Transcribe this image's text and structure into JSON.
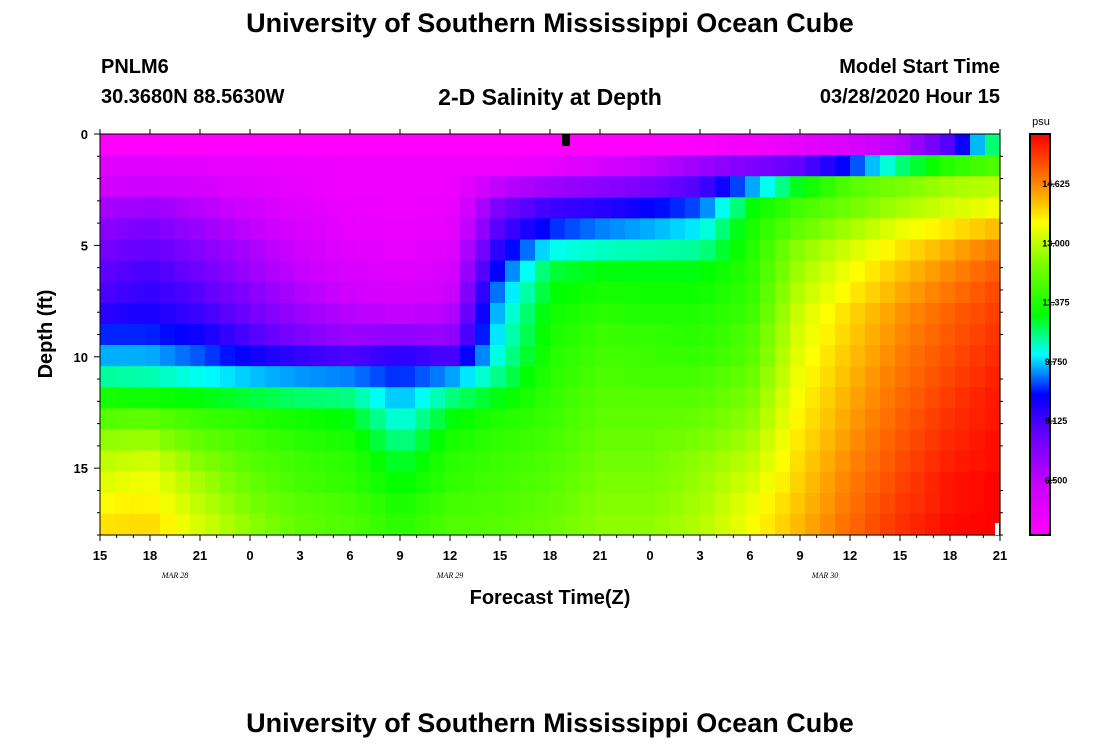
{
  "header": {
    "title": "University of Southern Mississippi Ocean Cube",
    "station": "PNLM6",
    "coordinates": "30.3680N 88.5630W",
    "subtitle": "2-D Salinity at Depth",
    "model_start_label": "Model Start Time",
    "model_start_value": "03/28/2020 Hour 15"
  },
  "footer": {
    "title": "University of Southern Mississippi Ocean Cube"
  },
  "chart_data": {
    "type": "heatmap",
    "title": "2-D Salinity at Depth",
    "xlabel": "Forecast Time(Z)",
    "ylabel": "Depth (ft)",
    "x_ticks": [
      "15",
      "18",
      "21",
      "0",
      "3",
      "6",
      "9",
      "12",
      "15",
      "18",
      "21",
      "0",
      "3",
      "6",
      "9",
      "12",
      "15",
      "18",
      "21"
    ],
    "x_range_hours": [
      0,
      54
    ],
    "date_labels": [
      {
        "text": "MAR  28",
        "hour": 4.5
      },
      {
        "text": "MAR  29",
        "hour": 21
      },
      {
        "text": "MAR  30",
        "hour": 43.5
      }
    ],
    "y_ticks": [
      0,
      5,
      10,
      15
    ],
    "ylim": [
      0,
      18
    ],
    "colorbar": {
      "unit": "psu",
      "min": 5.0,
      "max": 16.0,
      "tick_values": [
        6.5,
        8.125,
        9.75,
        11.375,
        13.0,
        14.625
      ],
      "tick_labels": [
        "6.500",
        "8.125",
        "9.750",
        "11.375",
        "13.000",
        "14.625"
      ]
    },
    "x_hours": [
      0,
      3,
      6,
      9,
      12,
      15,
      18,
      21,
      24,
      27,
      30,
      33,
      36,
      39,
      42,
      45,
      48,
      51,
      54
    ],
    "depth_levels": [
      0,
      1,
      2,
      3,
      4,
      5,
      6,
      7,
      8,
      9,
      10,
      11,
      12,
      13,
      14,
      15,
      16,
      17,
      18
    ],
    "salinity_rows": [
      [
        5.0,
        5.0,
        5.0,
        5.0,
        5.0,
        5.0,
        5.0,
        5.0,
        5.0,
        5.0,
        5.0,
        5.0,
        5.1,
        5.3,
        5.6,
        6.0,
        6.6,
        8.0,
        11.0
      ],
      [
        5.8,
        5.8,
        5.7,
        5.6,
        5.5,
        5.4,
        5.4,
        5.4,
        5.4,
        5.6,
        6.0,
        6.5,
        7.0,
        7.4,
        7.8,
        9.0,
        10.5,
        11.5,
        12.0
      ],
      [
        6.2,
        6.3,
        6.1,
        5.8,
        5.6,
        5.4,
        5.4,
        5.4,
        6.5,
        7.0,
        7.2,
        7.5,
        8.0,
        9.5,
        11.0,
        12.0,
        12.4,
        12.8,
        13.0
      ],
      [
        6.8,
        7.0,
        6.6,
        6.2,
        5.8,
        5.5,
        5.4,
        5.5,
        7.5,
        8.2,
        8.4,
        8.8,
        9.2,
        11.0,
        11.8,
        12.3,
        12.8,
        13.2,
        13.5
      ],
      [
        7.2,
        7.5,
        7.0,
        6.5,
        6.0,
        5.6,
        5.5,
        5.6,
        8.0,
        9.0,
        9.4,
        9.6,
        9.9,
        11.3,
        12.2,
        12.8,
        13.4,
        13.8,
        14.2
      ],
      [
        7.5,
        7.8,
        7.3,
        6.8,
        6.2,
        5.8,
        5.6,
        5.8,
        8.5,
        10.0,
        10.2,
        10.3,
        10.4,
        11.4,
        12.6,
        13.2,
        13.8,
        14.3,
        14.8
      ],
      [
        7.8,
        8.1,
        7.6,
        7.0,
        6.4,
        6.0,
        5.8,
        6.0,
        9.0,
        10.8,
        11.0,
        11.0,
        11.0,
        11.5,
        12.8,
        13.5,
        14.1,
        14.6,
        15.1
      ],
      [
        8.0,
        8.3,
        7.9,
        7.3,
        6.7,
        6.2,
        6.0,
        6.2,
        9.5,
        11.0,
        11.3,
        11.2,
        11.2,
        11.6,
        13.0,
        13.7,
        14.3,
        14.8,
        15.3
      ],
      [
        8.4,
        8.6,
        8.2,
        7.6,
        7.0,
        6.6,
        6.4,
        6.6,
        9.8,
        11.2,
        11.5,
        11.4,
        11.4,
        11.7,
        13.2,
        13.9,
        14.5,
        15.0,
        15.4
      ],
      [
        9.0,
        9.0,
        8.7,
        8.0,
        7.4,
        7.0,
        7.2,
        7.0,
        10.0,
        11.3,
        11.7,
        11.6,
        11.5,
        11.9,
        13.3,
        14.0,
        14.6,
        15.1,
        15.5
      ],
      [
        9.6,
        9.6,
        9.2,
        8.7,
        8.3,
        8.0,
        8.4,
        8.0,
        10.2,
        11.4,
        11.8,
        11.7,
        11.6,
        12.0,
        13.4,
        14.1,
        14.7,
        15.2,
        15.6
      ],
      [
        10.4,
        10.3,
        10.0,
        9.7,
        9.5,
        9.4,
        9.0,
        9.5,
        10.5,
        11.5,
        11.9,
        11.8,
        11.8,
        12.2,
        13.5,
        14.2,
        14.8,
        15.3,
        15.7
      ],
      [
        11.3,
        11.2,
        11.0,
        10.8,
        10.6,
        10.5,
        9.6,
        10.5,
        11.0,
        11.6,
        12.0,
        12.0,
        12.0,
        12.4,
        13.6,
        14.3,
        14.9,
        15.4,
        15.8
      ],
      [
        12.0,
        12.1,
        11.7,
        11.5,
        11.2,
        11.0,
        10.0,
        11.0,
        11.4,
        11.7,
        12.1,
        12.1,
        12.2,
        12.6,
        13.7,
        14.4,
        15.0,
        15.5,
        15.8
      ],
      [
        12.6,
        12.7,
        12.1,
        11.8,
        11.5,
        11.3,
        10.4,
        11.3,
        11.6,
        11.8,
        12.2,
        12.2,
        12.4,
        12.8,
        13.8,
        14.5,
        15.1,
        15.6,
        15.9
      ],
      [
        13.0,
        13.2,
        12.5,
        12.0,
        11.7,
        11.5,
        10.8,
        11.5,
        11.7,
        11.9,
        12.3,
        12.3,
        12.6,
        13.0,
        13.9,
        14.6,
        15.2,
        15.7,
        15.9
      ],
      [
        13.3,
        13.5,
        12.8,
        12.2,
        11.8,
        11.6,
        11.0,
        11.6,
        11.8,
        12.0,
        12.4,
        12.4,
        12.7,
        13.2,
        14.0,
        14.7,
        15.3,
        15.8,
        16.0
      ],
      [
        13.6,
        13.7,
        13.0,
        12.4,
        12.0,
        11.8,
        11.3,
        11.8,
        11.9,
        12.1,
        12.5,
        12.5,
        12.8,
        13.4,
        14.1,
        14.8,
        15.4,
        15.8,
        16.0
      ],
      [
        13.8,
        13.9,
        13.2,
        12.6,
        12.1,
        11.9,
        11.5,
        11.9,
        12.0,
        12.2,
        12.6,
        12.6,
        12.9,
        13.5,
        14.2,
        14.9,
        15.5,
        15.9,
        16.0
      ]
    ]
  }
}
